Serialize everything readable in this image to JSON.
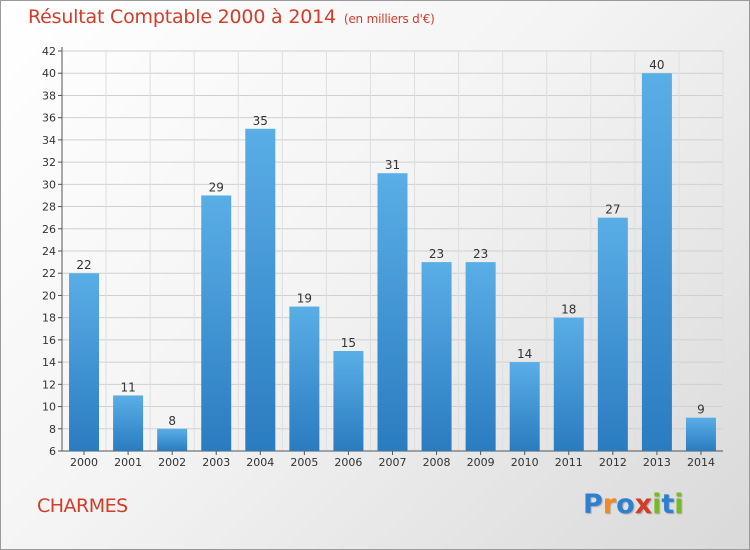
{
  "header": {
    "title": "Résultat Comptable 2000 à 2014",
    "subtitle": "(en milliers d'€)"
  },
  "footer": {
    "commune": "CHARMES",
    "logo": {
      "letters": [
        "P",
        "r",
        "o",
        "x",
        "i",
        "t",
        "i"
      ],
      "colors": [
        "#2f7fd0",
        "#f08a1c",
        "#2f7fd0",
        "#d23c28",
        "#7ab82a",
        "#2f7fd0",
        "#7ab82a"
      ]
    }
  },
  "colors": {
    "bar_top": "#5aaee6",
    "bar_bottom": "#2a7cc0",
    "title": "#d23c28"
  },
  "chart_data": {
    "type": "bar",
    "title": "Résultat Comptable 2000 à 2014",
    "subtitle": "(en milliers d'€)",
    "categories": [
      "2000",
      "2001",
      "2002",
      "2003",
      "2004",
      "2005",
      "2006",
      "2007",
      "2008",
      "2009",
      "2010",
      "2011",
      "2012",
      "2013",
      "2014"
    ],
    "values": [
      22,
      11,
      8,
      29,
      35,
      19,
      15,
      31,
      23,
      23,
      14,
      18,
      27,
      40,
      9
    ],
    "ylim": [
      6,
      42
    ],
    "yticks": [
      6,
      8,
      10,
      12,
      14,
      16,
      18,
      20,
      22,
      24,
      26,
      28,
      30,
      32,
      34,
      36,
      38,
      40,
      42
    ],
    "grid": true,
    "data_labels": true
  }
}
